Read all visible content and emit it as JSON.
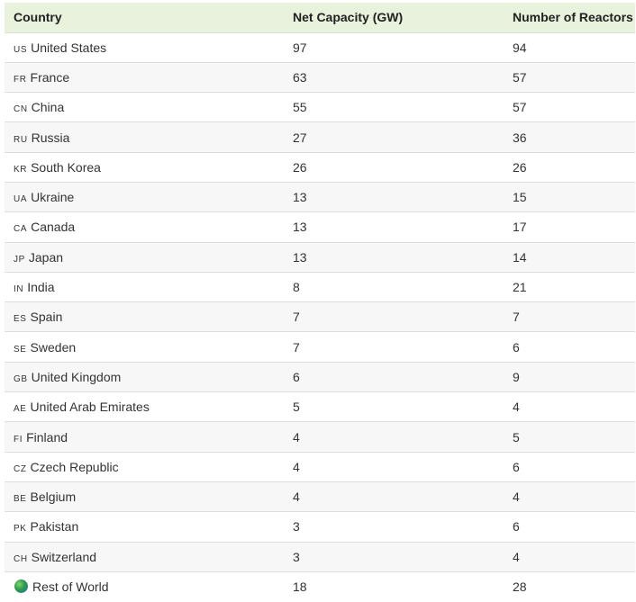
{
  "table": {
    "headers": [
      "Country",
      "Net Capacity (GW)",
      "Number of Reactors"
    ],
    "rows": [
      {
        "code": "US",
        "country": "United States",
        "capacity": "97",
        "reactors": "94"
      },
      {
        "code": "FR",
        "country": "France",
        "capacity": "63",
        "reactors": "57"
      },
      {
        "code": "CN",
        "country": "China",
        "capacity": "55",
        "reactors": "57"
      },
      {
        "code": "RU",
        "country": "Russia",
        "capacity": "27",
        "reactors": "36"
      },
      {
        "code": "KR",
        "country": "South Korea",
        "capacity": "26",
        "reactors": "26"
      },
      {
        "code": "UA",
        "country": "Ukraine",
        "capacity": "13",
        "reactors": "15"
      },
      {
        "code": "CA",
        "country": "Canada",
        "capacity": "13",
        "reactors": "17"
      },
      {
        "code": "JP",
        "country": "Japan",
        "capacity": "13",
        "reactors": "14"
      },
      {
        "code": "IN",
        "country": "India",
        "capacity": "8",
        "reactors": "21"
      },
      {
        "code": "ES",
        "country": "Spain",
        "capacity": "7",
        "reactors": "7"
      },
      {
        "code": "SE",
        "country": "Sweden",
        "capacity": "7",
        "reactors": "6"
      },
      {
        "code": "GB",
        "country": "United Kingdom",
        "capacity": "6",
        "reactors": "9"
      },
      {
        "code": "AE",
        "country": "United Arab Emirates",
        "capacity": "5",
        "reactors": "4"
      },
      {
        "code": "FI",
        "country": "Finland",
        "capacity": "4",
        "reactors": "5"
      },
      {
        "code": "CZ",
        "country": "Czech Republic",
        "capacity": "4",
        "reactors": "6"
      },
      {
        "code": "BE",
        "country": "Belgium",
        "capacity": "4",
        "reactors": "4"
      },
      {
        "code": "PK",
        "country": "Pakistan",
        "capacity": "3",
        "reactors": "6"
      },
      {
        "code": "CH",
        "country": "Switzerland",
        "capacity": "3",
        "reactors": "4"
      },
      {
        "code": "",
        "icon": "globe-icon",
        "country": "Rest of World",
        "capacity": "18",
        "reactors": "28"
      }
    ]
  }
}
